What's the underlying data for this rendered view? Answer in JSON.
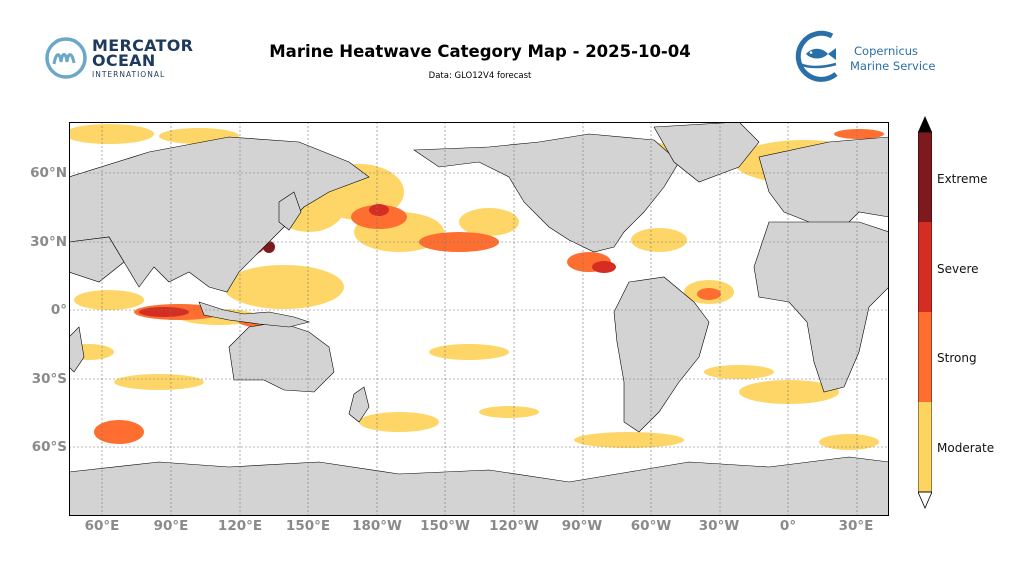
{
  "header": {
    "title": "Marine Heatwave Category Map - 2025-10-04",
    "subtitle": "Data: GLO12V4 forecast"
  },
  "logos": {
    "left": {
      "line1": "MERCATOR",
      "line2": "OCEAN",
      "line3": "INTERNATIONAL",
      "color": "#1f3a5c",
      "accent": "#6aa7c8"
    },
    "right": {
      "line1": "Copernicus",
      "line2": "Marine Service",
      "color": "#2a6fa8"
    }
  },
  "map": {
    "projection": "plate-carree",
    "central_longitude": 180,
    "extent_lon": [
      45,
      225
    ],
    "extent_lat": [
      -80,
      80
    ],
    "land_color": "#d3d3d3",
    "ocean_color": "#ffffff",
    "gridlines": true,
    "lat_labels": [
      "60°N",
      "30°N",
      "0°",
      "30°S",
      "60°S"
    ],
    "lon_labels": [
      "60°E",
      "90°E",
      "120°E",
      "150°E",
      "180°W",
      "150°W",
      "120°W",
      "90°W",
      "60°W",
      "30°W",
      "0°",
      "30°E"
    ]
  },
  "legend": {
    "categories": [
      {
        "label": "Moderate",
        "color": "#fed460"
      },
      {
        "label": "Strong",
        "color": "#fd6e30"
      },
      {
        "label": "Severe",
        "color": "#d62d23"
      },
      {
        "label": "Extreme",
        "color": "#7e1a1e"
      }
    ],
    "extend": "both"
  }
}
